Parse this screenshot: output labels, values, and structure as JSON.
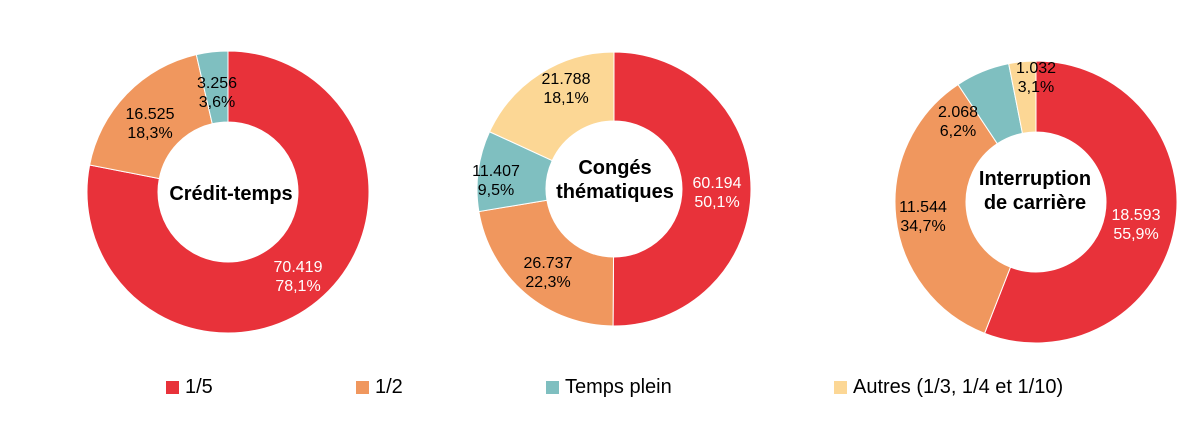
{
  "chart_data": [
    {
      "type": "pie",
      "donut": true,
      "title": "Crédit-temps",
      "slices": [
        {
          "category": "1/5",
          "value": 70419,
          "value_label": "70.419",
          "pct_label": "78,1%"
        },
        {
          "category": "1/2",
          "value": 16525,
          "value_label": "16.525",
          "pct_label": "18,3%"
        },
        {
          "category": "Temps plein",
          "value": 3256,
          "value_label": "3.256",
          "pct_label": "3,6%"
        }
      ]
    },
    {
      "type": "pie",
      "donut": true,
      "title": "Congés thématiques",
      "title_lines": [
        "Congés",
        "thématiques"
      ],
      "slices": [
        {
          "category": "1/5",
          "value": 60194,
          "value_label": "60.194",
          "pct_label": "50,1%"
        },
        {
          "category": "1/2",
          "value": 26737,
          "value_label": "26.737",
          "pct_label": "22,3%"
        },
        {
          "category": "Temps plein",
          "value": 11407,
          "value_label": "11.407",
          "pct_label": "9,5%"
        },
        {
          "category": "Autres (1/3, 1/4 et 1/10)",
          "value": 21788,
          "value_label": "21.788",
          "pct_label": "18,1%"
        }
      ]
    },
    {
      "type": "pie",
      "donut": true,
      "title": "Interruption de carrière",
      "title_lines": [
        "Interruption",
        "de carrière"
      ],
      "slices": [
        {
          "category": "1/5",
          "value": 18593,
          "value_label": "18.593",
          "pct_label": "55,9%"
        },
        {
          "category": "1/2",
          "value": 11544,
          "value_label": "11.544",
          "pct_label": "34,7%"
        },
        {
          "category": "Temps plein",
          "value": 2068,
          "value_label": "2.068",
          "pct_label": "6,2%"
        },
        {
          "category": "Autres (1/3, 1/4 et 1/10)",
          "value": 1032,
          "value_label": "1.032",
          "pct_label": "3,1%"
        }
      ]
    }
  ],
  "legend": {
    "placement": "bottom",
    "items": [
      {
        "label": "1/5",
        "color": "#e8323a"
      },
      {
        "label": "1/2",
        "color": "#f0975e"
      },
      {
        "label": "Temps plein",
        "color": "#7fbfc0"
      },
      {
        "label": "Autres (1/3, 1/4 et 1/10)",
        "color": "#fcd795"
      }
    ]
  },
  "colors": {
    "1/5": "#e8323a",
    "1/2": "#f0975e",
    "Temps plein": "#7fbfc0",
    "Autres (1/3, 1/4 et 1/10)": "#fcd795"
  }
}
